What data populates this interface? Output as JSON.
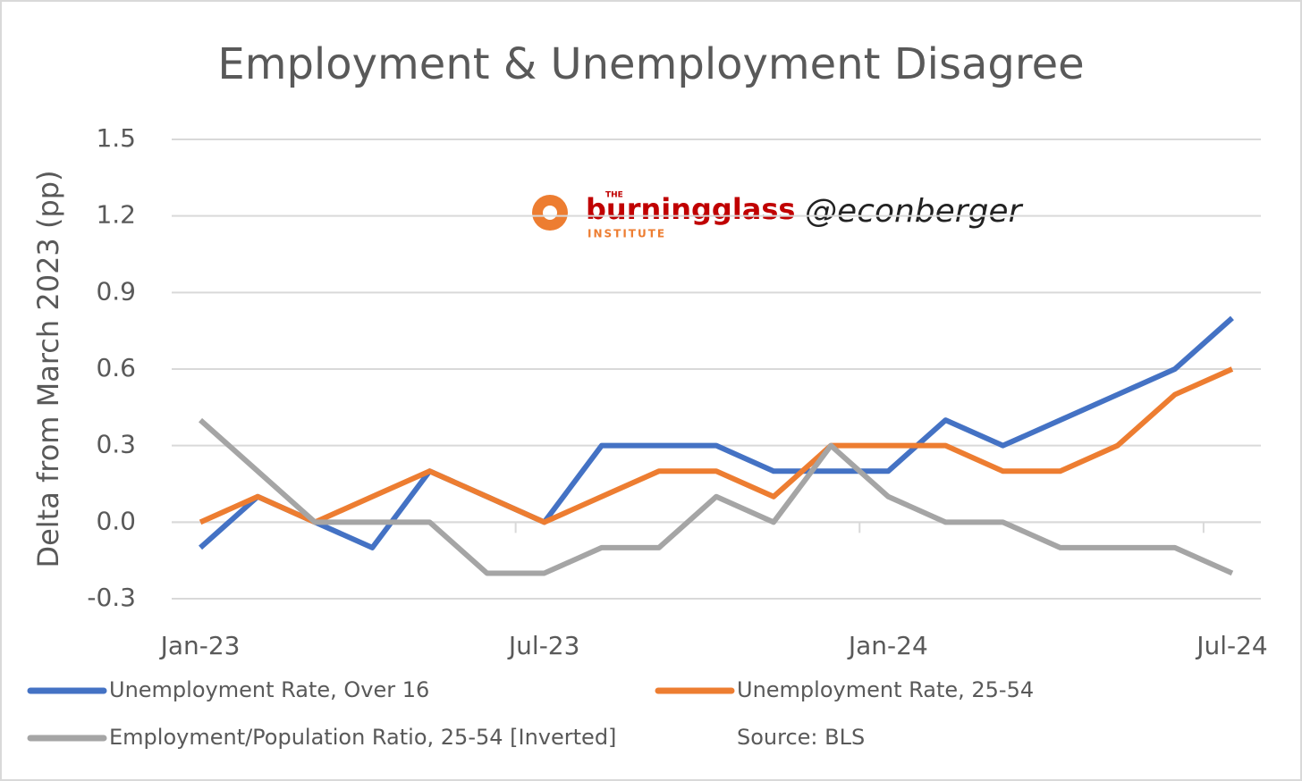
{
  "chart_data": {
    "type": "line",
    "title": "Employment & Unemployment Disagree",
    "y_label": "Delta from March 2023 (pp)",
    "categories": [
      "Jan-23",
      null,
      null,
      null,
      null,
      null,
      "Jul-23",
      null,
      null,
      null,
      null,
      null,
      "Jan-24",
      null,
      null,
      null,
      null,
      null,
      "Jul-24"
    ],
    "series": [
      {
        "name": "Unemployment Rate, Over 16",
        "color": "#4472c4",
        "values": [
          -0.1,
          0.1,
          0.0,
          -0.1,
          0.2,
          0.1,
          0.0,
          0.3,
          0.3,
          0.3,
          0.2,
          0.2,
          0.2,
          0.4,
          0.3,
          0.4,
          0.5,
          0.6,
          0.8
        ]
      },
      {
        "name": "Unemployment Rate, 25-54",
        "color": "#ed7d31",
        "values": [
          0.0,
          0.1,
          0.0,
          0.1,
          0.2,
          0.1,
          0.0,
          0.1,
          0.2,
          0.2,
          0.1,
          0.3,
          0.3,
          0.3,
          0.2,
          0.2,
          0.3,
          0.5,
          0.6
        ]
      },
      {
        "name": "Employment/Population Ratio, 25-54 [Inverted]",
        "color": "#a5a5a5",
        "values": [
          0.4,
          0.2,
          0.0,
          0.0,
          0.0,
          -0.2,
          -0.2,
          -0.1,
          -0.1,
          0.1,
          0.0,
          0.3,
          0.1,
          0.0,
          0.0,
          -0.1,
          -0.1,
          -0.1,
          -0.2
        ]
      }
    ],
    "ylim": [
      -0.3,
      1.5
    ],
    "yticks": [
      -0.3,
      {
        "value": 0,
        "label": "0.0"
      },
      0.3,
      0.6,
      0.9,
      1.2,
      1.5
    ],
    "grid": true,
    "legend": "bottom",
    "source": "Source: BLS",
    "logo": {
      "prefix": "THE",
      "name": "burningglass",
      "suffix": "INSTITUTE",
      "handle": "@econberger"
    }
  }
}
